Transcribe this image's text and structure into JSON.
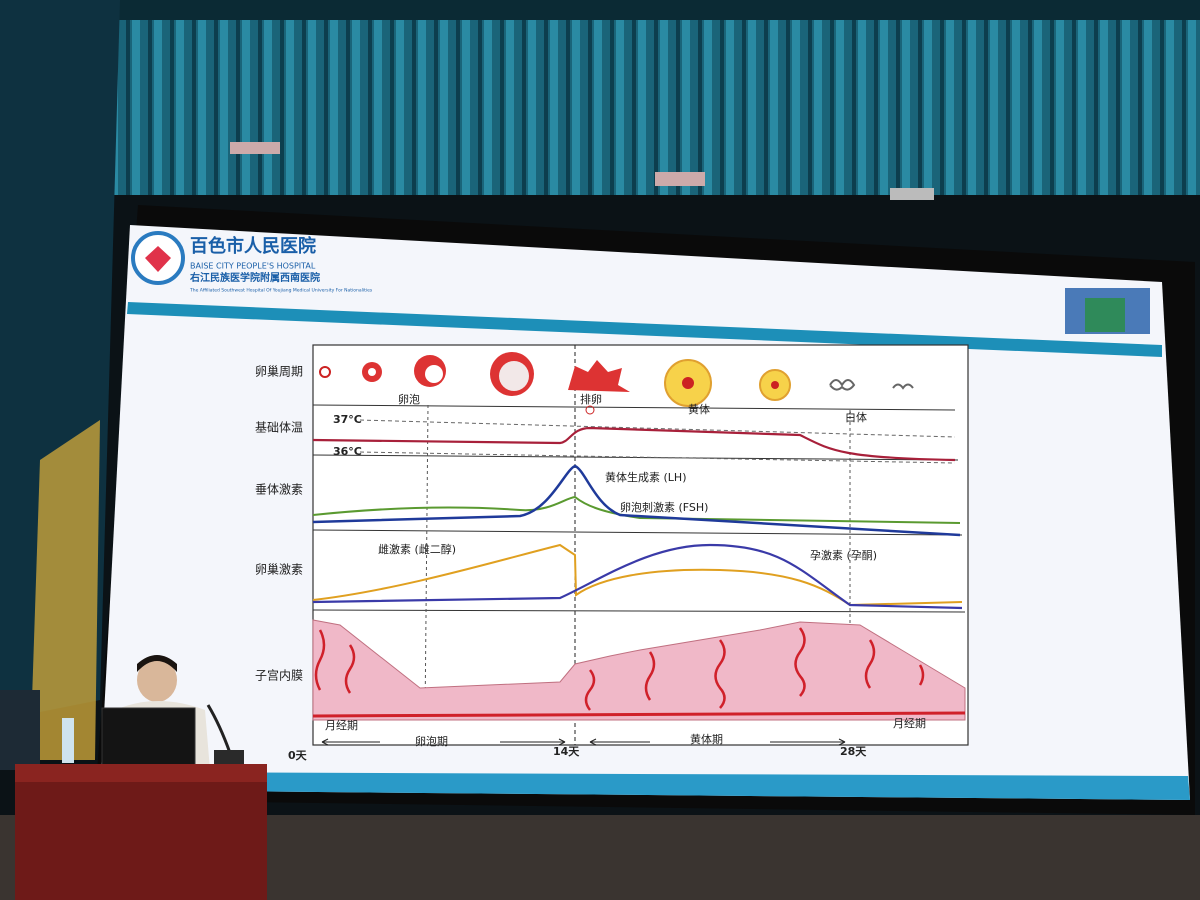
{
  "header": {
    "title": "百色市人民医院",
    "subtitle": "BAISE CITY PEOPLE'S HOSPITAL",
    "affiliation": "右江民族医学院附属西南医院",
    "affiliation_en": "The Affiliated Southwest Hospital Of Youjiang Medical University For Nationalities"
  },
  "diagram": {
    "rows": [
      "卵巢周期",
      "基础体温",
      "垂体激素",
      "卵巢激素",
      "子宫内膜"
    ],
    "ovary_labels": [
      "卵泡",
      "排卵",
      "黄体",
      "白体"
    ],
    "temperature_labels": [
      "37°C",
      "36°C"
    ],
    "pituitary_labels": [
      "黄体生成素 (LH)",
      "卵泡刺激素 (FSH)"
    ],
    "ovarian_hormone_labels": [
      "雌激素 (雌二醇)",
      "孕激素 (孕酮)"
    ],
    "phases": [
      "月经期",
      "卵泡期",
      "黄体期",
      "月经期"
    ],
    "days": [
      "0天",
      "14天",
      "28天"
    ]
  }
}
